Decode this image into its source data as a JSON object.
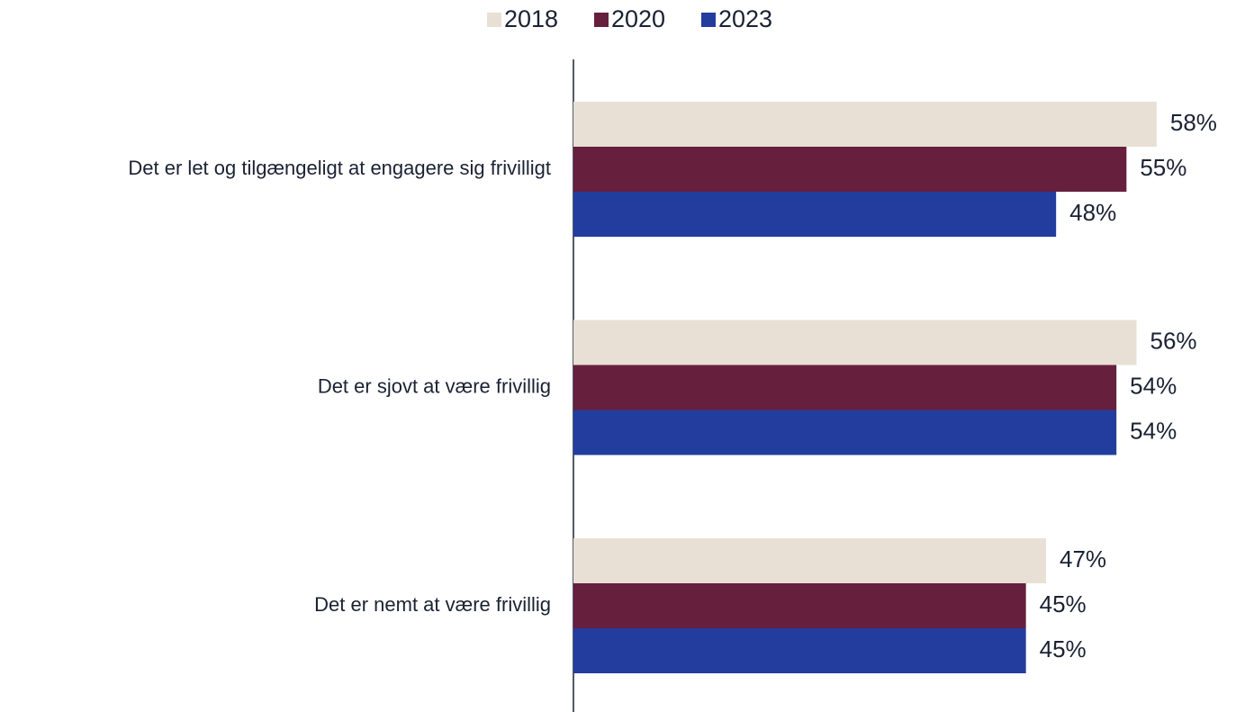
{
  "chart_data": {
    "type": "bar",
    "orientation": "horizontal",
    "categories": [
      "Det er let og tilgængeligt at engagere sig frivilligt",
      "Det er sjovt at være frivillig",
      "Det er nemt at være frivillig"
    ],
    "series": [
      {
        "name": "2018",
        "color": "#e8e0d5",
        "values": [
          58,
          56,
          47
        ],
        "value_labels": [
          "58%",
          "56%",
          "47%"
        ]
      },
      {
        "name": "2020",
        "color": "#661f3d",
        "values": [
          55,
          54,
          45
        ],
        "value_labels": [
          "55%",
          "54%",
          "45%"
        ]
      },
      {
        "name": "2023",
        "color": "#233d9e",
        "values": [
          48,
          54,
          45
        ],
        "value_labels": [
          "48%",
          "54%",
          "45%"
        ]
      }
    ],
    "legend": "top"
  }
}
